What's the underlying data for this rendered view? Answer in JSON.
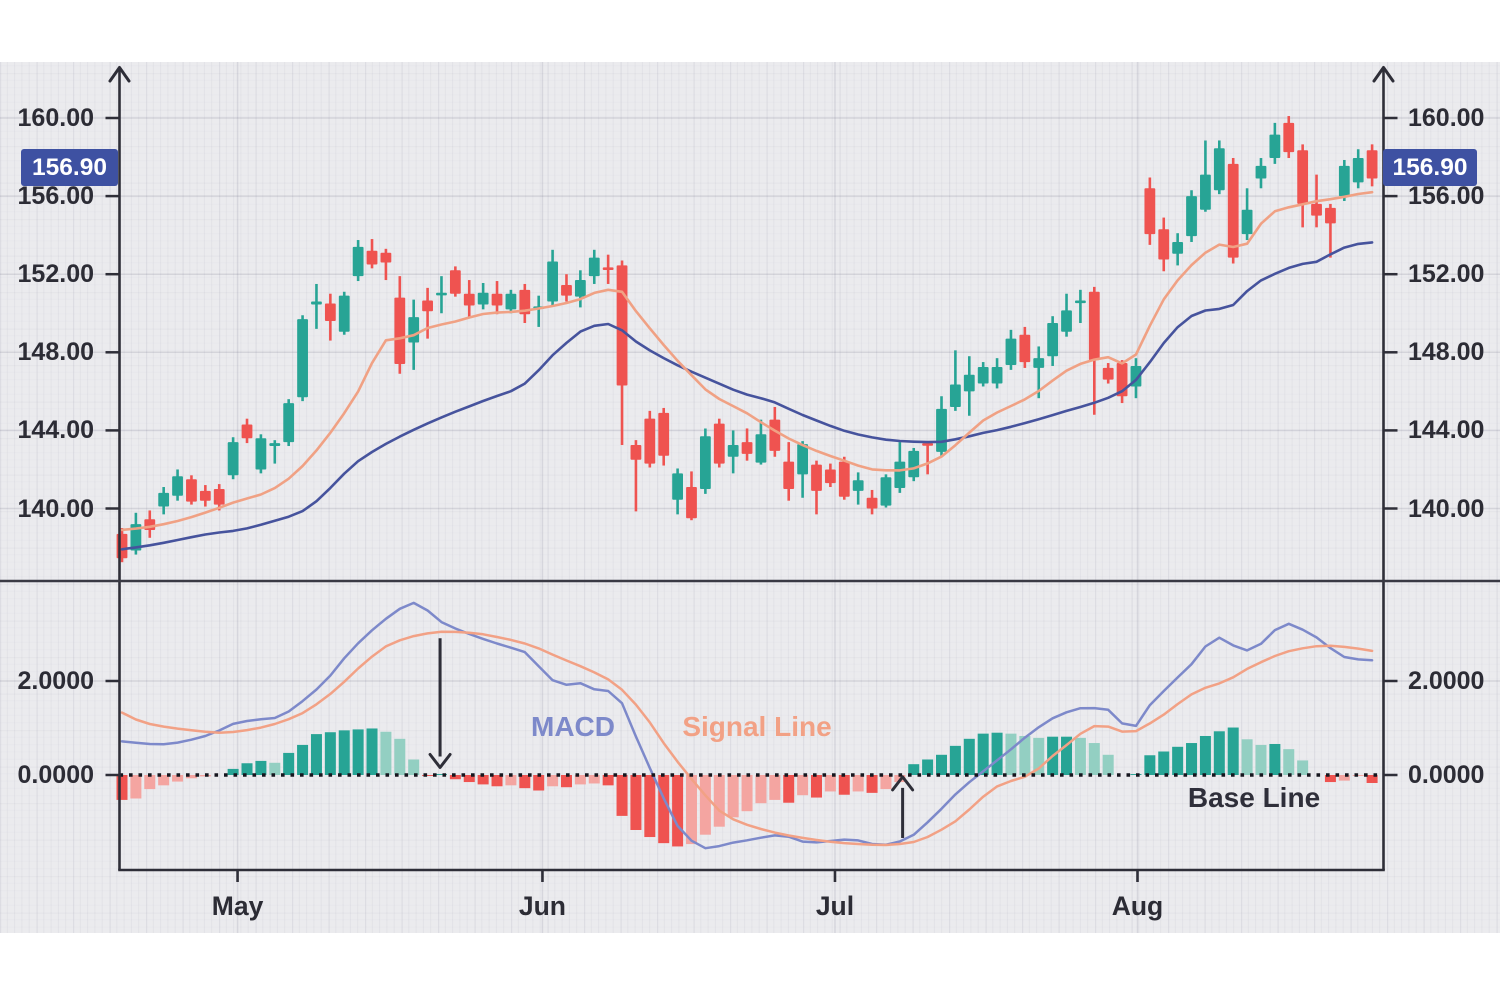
{
  "chart": {
    "type": "candlestick_with_macd",
    "price_panel": {
      "ticks": [
        {
          "label": "160.00",
          "value": 160.0
        },
        {
          "label": "156.00",
          "value": 156.0
        },
        {
          "label": "152.00",
          "value": 152.0
        },
        {
          "label": "148.00",
          "value": 148.0
        },
        {
          "label": "144.00",
          "value": 144.0
        },
        {
          "label": "140.00",
          "value": 140.0
        }
      ],
      "last_price_badge": {
        "label": "156.90",
        "value": 156.9
      }
    },
    "macd_panel": {
      "ticks": [
        {
          "label": "2.0000",
          "value": 2.0
        },
        {
          "label": "0.0000",
          "value": 0.0
        }
      ],
      "macd_label": "MACD",
      "signal_label": "Signal Line",
      "base_label": "Base Line"
    },
    "x_axis": {
      "months": [
        {
          "label": "May",
          "index": 8.32
        },
        {
          "label": "Jun",
          "index": 30.27
        },
        {
          "label": "Jul",
          "index": 51.33
        },
        {
          "label": "Aug",
          "index": 73.11
        }
      ]
    },
    "chart_data": {
      "type": "candlestick+macd",
      "ohlc_note": "candles are [open, high, low, close]; macd/signal/hist aligned per candle",
      "candles": [
        [
          138.7,
          139.0,
          137.25,
          137.45
        ],
        [
          137.85,
          139.78,
          137.64,
          139.2
        ],
        [
          139.45,
          139.9,
          138.5,
          138.9
        ],
        [
          140.1,
          141.1,
          139.7,
          140.8
        ],
        [
          140.65,
          142.0,
          140.4,
          141.65
        ],
        [
          141.5,
          141.7,
          140.2,
          140.35
        ],
        [
          140.9,
          141.2,
          140.1,
          140.4
        ],
        [
          141.0,
          141.25,
          139.9,
          140.2
        ],
        [
          141.7,
          143.65,
          141.5,
          143.4
        ],
        [
          144.3,
          144.6,
          143.35,
          143.6
        ],
        [
          142.0,
          143.8,
          141.8,
          143.6
        ],
        [
          143.2,
          143.5,
          142.3,
          143.35
        ],
        [
          143.4,
          145.6,
          143.2,
          145.4
        ],
        [
          145.7,
          149.9,
          145.5,
          149.7
        ],
        [
          150.45,
          151.5,
          149.2,
          150.6
        ],
        [
          150.5,
          151.0,
          148.6,
          149.6
        ],
        [
          149.05,
          151.1,
          148.9,
          150.9
        ],
        [
          151.9,
          153.75,
          151.65,
          153.4
        ],
        [
          153.2,
          153.8,
          152.3,
          152.5
        ],
        [
          153.1,
          153.3,
          151.7,
          152.6
        ],
        [
          150.8,
          151.9,
          146.9,
          147.4
        ],
        [
          148.5,
          150.7,
          147.1,
          149.8
        ],
        [
          150.65,
          151.3,
          148.7,
          150.1
        ],
        [
          150.95,
          151.9,
          150.0,
          151.05
        ],
        [
          152.2,
          152.4,
          150.85,
          151.0
        ],
        [
          151.0,
          151.7,
          149.8,
          150.4
        ],
        [
          150.45,
          151.55,
          150.2,
          151.05
        ],
        [
          151.0,
          151.65,
          149.95,
          150.4
        ],
        [
          150.2,
          151.2,
          150.0,
          151.0
        ],
        [
          151.2,
          151.5,
          149.5,
          149.95
        ],
        [
          150.3,
          150.9,
          149.3,
          150.35
        ],
        [
          150.6,
          153.25,
          150.35,
          152.65
        ],
        [
          151.45,
          152.0,
          150.6,
          150.9
        ],
        [
          150.85,
          152.2,
          150.3,
          151.7
        ],
        [
          151.9,
          153.25,
          151.5,
          152.85
        ],
        [
          152.35,
          153.0,
          151.5,
          152.25
        ],
        [
          152.45,
          152.7,
          143.25,
          146.3
        ],
        [
          143.25,
          143.5,
          139.85,
          142.5
        ],
        [
          144.6,
          145.0,
          142.1,
          142.3
        ],
        [
          144.9,
          145.15,
          142.2,
          142.7
        ],
        [
          140.45,
          142.05,
          139.7,
          141.8
        ],
        [
          141.1,
          141.9,
          139.4,
          139.5
        ],
        [
          141.0,
          144.1,
          140.75,
          143.7
        ],
        [
          144.35,
          144.6,
          142.1,
          142.3
        ],
        [
          142.65,
          144.0,
          141.8,
          143.25
        ],
        [
          143.4,
          144.1,
          142.45,
          142.8
        ],
        [
          142.35,
          144.55,
          142.25,
          143.8
        ],
        [
          144.55,
          145.2,
          142.65,
          142.95
        ],
        [
          142.4,
          143.4,
          140.4,
          141.0
        ],
        [
          141.75,
          143.45,
          140.55,
          143.3
        ],
        [
          142.25,
          142.45,
          139.7,
          140.9
        ],
        [
          142.0,
          142.3,
          141.1,
          141.3
        ],
        [
          142.4,
          142.65,
          140.45,
          140.6
        ],
        [
          140.9,
          141.85,
          140.2,
          141.45
        ],
        [
          140.55,
          140.95,
          139.7,
          140.0
        ],
        [
          140.15,
          141.75,
          140.05,
          141.6
        ],
        [
          141.05,
          143.4,
          140.8,
          142.4
        ],
        [
          141.6,
          143.1,
          141.4,
          142.95
        ],
        [
          143.35,
          143.4,
          141.75,
          143.25
        ],
        [
          142.9,
          145.75,
          142.7,
          145.1
        ],
        [
          145.2,
          148.1,
          145.0,
          146.35
        ],
        [
          146.0,
          147.8,
          144.75,
          146.85
        ],
        [
          146.4,
          147.5,
          146.25,
          147.25
        ],
        [
          146.4,
          147.7,
          146.15,
          147.25
        ],
        [
          147.35,
          149.15,
          147.1,
          148.7
        ],
        [
          148.9,
          149.3,
          147.2,
          147.5
        ],
        [
          147.2,
          148.3,
          145.65,
          147.7
        ],
        [
          147.8,
          149.85,
          147.3,
          149.5
        ],
        [
          149.05,
          151.0,
          148.8,
          150.15
        ],
        [
          150.55,
          151.2,
          149.5,
          150.65
        ],
        [
          151.1,
          151.35,
          144.8,
          147.6
        ],
        [
          147.2,
          147.45,
          146.4,
          146.6
        ],
        [
          147.45,
          147.6,
          145.4,
          145.75
        ],
        [
          146.25,
          147.7,
          145.65,
          147.3
        ],
        [
          156.4,
          156.95,
          153.5,
          154.05
        ],
        [
          154.3,
          154.9,
          152.15,
          152.75
        ],
        [
          153.05,
          154.1,
          152.45,
          153.65
        ],
        [
          153.95,
          156.3,
          153.65,
          156.0
        ],
        [
          155.3,
          158.85,
          155.2,
          157.1
        ],
        [
          156.3,
          158.85,
          156.1,
          158.45
        ],
        [
          157.65,
          157.95,
          152.55,
          152.85
        ],
        [
          154.05,
          156.4,
          153.75,
          155.3
        ],
        [
          156.9,
          157.95,
          156.4,
          157.55
        ],
        [
          157.95,
          159.75,
          157.65,
          159.15
        ],
        [
          159.75,
          160.1,
          157.95,
          158.25
        ],
        [
          158.35,
          158.65,
          154.4,
          155.6
        ],
        [
          155.6,
          157.1,
          154.4,
          155.0
        ],
        [
          155.4,
          155.6,
          152.85,
          154.6
        ],
        [
          156.0,
          157.85,
          155.75,
          157.55
        ],
        [
          156.7,
          158.4,
          156.4,
          157.95
        ],
        [
          158.35,
          158.65,
          156.5,
          156.9
        ]
      ],
      "ema_fast": [
        138.906,
        138.971,
        139.063,
        139.195,
        139.362,
        139.559,
        139.788,
        140.037,
        140.3,
        140.512,
        140.717,
        141.044,
        141.525,
        142.179,
        142.977,
        143.884,
        144.882,
        145.985,
        147.446,
        148.613,
        148.718,
        148.876,
        149.244,
        149.426,
        149.58,
        149.78,
        149.964,
        150.035,
        150.071,
        150.132,
        150.243,
        150.373,
        150.527,
        150.724,
        151.04,
        151.2,
        151.101,
        150.112,
        149.229,
        148.376,
        147.567,
        146.828,
        146.098,
        145.607,
        145.246,
        144.878,
        144.421,
        143.989,
        143.585,
        143.247,
        142.952,
        142.687,
        142.449,
        142.195,
        142.001,
        141.959,
        141.95,
        142.055,
        142.312,
        142.66,
        143.243,
        143.888,
        144.506,
        144.915,
        145.248,
        145.587,
        146.019,
        146.552,
        147.06,
        147.407,
        147.628,
        147.748,
        147.431,
        147.885,
        149.364,
        150.714,
        151.684,
        152.467,
        153.099,
        153.515,
        153.391,
        153.564,
        154.587,
        155.219,
        155.427,
        155.582,
        155.737,
        155.842,
        155.965,
        156.11,
        156.2
      ],
      "ema_slow": [
        137.912,
        138.006,
        138.115,
        138.245,
        138.386,
        138.53,
        138.669,
        138.769,
        138.854,
        138.983,
        139.167,
        139.369,
        139.578,
        139.865,
        140.372,
        141.054,
        141.78,
        142.42,
        142.894,
        143.308,
        143.683,
        144.03,
        144.36,
        144.668,
        144.956,
        145.231,
        145.504,
        145.763,
        146.01,
        146.396,
        147.082,
        147.851,
        148.483,
        149.06,
        149.356,
        149.448,
        149.125,
        148.552,
        148.098,
        147.701,
        147.335,
        147.007,
        146.701,
        146.392,
        146.087,
        145.835,
        145.651,
        145.435,
        145.104,
        144.789,
        144.509,
        144.23,
        143.98,
        143.788,
        143.639,
        143.523,
        143.456,
        143.419,
        143.403,
        143.417,
        143.544,
        143.698,
        143.872,
        144.017,
        144.186,
        144.373,
        144.574,
        144.785,
        144.999,
        145.2,
        145.413,
        145.671,
        146.009,
        146.584,
        147.496,
        148.478,
        149.283,
        149.857,
        150.139,
        150.221,
        150.421,
        151.132,
        151.685,
        152.02,
        152.321,
        152.526,
        152.633,
        153.013,
        153.362,
        153.552,
        153.63
      ],
      "macd": [
        0.715,
        0.686,
        0.66,
        0.656,
        0.69,
        0.751,
        0.829,
        0.946,
        1.088,
        1.148,
        1.185,
        1.212,
        1.352,
        1.573,
        1.819,
        2.116,
        2.482,
        2.802,
        3.078,
        3.323,
        3.536,
        3.662,
        3.5,
        3.253,
        3.117,
        2.999,
        2.895,
        2.798,
        2.709,
        2.614,
        2.314,
        2.016,
        1.92,
        1.953,
        1.823,
        1.788,
        1.528,
        0.819,
        0.15,
        -0.495,
        -1.082,
        -1.397,
        -1.558,
        -1.512,
        -1.438,
        -1.39,
        -1.335,
        -1.285,
        -1.313,
        -1.416,
        -1.435,
        -1.404,
        -1.374,
        -1.392,
        -1.469,
        -1.482,
        -1.415,
        -1.273,
        -1.006,
        -0.719,
        -0.412,
        -0.153,
        0.079,
        0.313,
        0.546,
        0.794,
        1.015,
        1.206,
        1.334,
        1.422,
        1.423,
        1.387,
        1.098,
        1.044,
        1.487,
        1.788,
        2.075,
        2.358,
        2.734,
        2.922,
        2.758,
        2.651,
        2.792,
        3.083,
        3.218,
        3.092,
        2.927,
        2.699,
        2.511,
        2.459,
        2.44
      ],
      "signal": [
        1.327,
        1.181,
        1.086,
        1.03,
        0.987,
        0.954,
        0.921,
        0.9,
        0.915,
        0.956,
        1.008,
        1.085,
        1.188,
        1.317,
        1.504,
        1.726,
        1.983,
        2.267,
        2.52,
        2.736,
        2.866,
        2.955,
        3.012,
        3.048,
        3.045,
        3.026,
        2.993,
        2.937,
        2.874,
        2.797,
        2.693,
        2.561,
        2.437,
        2.314,
        2.182,
        2.034,
        1.813,
        1.497,
        1.12,
        0.678,
        0.281,
        -0.084,
        -0.433,
        -0.758,
        -0.943,
        -1.06,
        -1.149,
        -1.225,
        -1.288,
        -1.339,
        -1.384,
        -1.422,
        -1.449,
        -1.469,
        -1.484,
        -1.49,
        -1.469,
        -1.425,
        -1.319,
        -1.163,
        -0.986,
        -0.735,
        -0.461,
        -0.242,
        -0.127,
        -0.038,
        0.139,
        0.404,
        0.636,
        0.877,
        1.041,
        1.029,
        0.923,
        0.934,
        1.098,
        1.286,
        1.508,
        1.714,
        1.856,
        1.949,
        2.078,
        2.258,
        2.401,
        2.531,
        2.634,
        2.696,
        2.741,
        2.748,
        2.725,
        2.689,
        2.64
      ],
      "hist": [
        -0.53,
        -0.5,
        -0.3,
        -0.22,
        -0.14,
        -0.07,
        -0.03,
        -0.01,
        0.13,
        0.25,
        0.3,
        0.26,
        0.47,
        0.64,
        0.87,
        0.91,
        0.95,
        0.97,
        0.99,
        0.92,
        0.77,
        0.33,
        -0.02,
        0.02,
        -0.09,
        -0.15,
        -0.2,
        -0.24,
        -0.22,
        -0.28,
        -0.33,
        -0.24,
        -0.26,
        -0.2,
        -0.18,
        -0.22,
        -0.87,
        -1.17,
        -1.32,
        -1.45,
        -1.52,
        -1.47,
        -1.27,
        -1.1,
        -0.9,
        -0.77,
        -0.6,
        -0.53,
        -0.59,
        -0.43,
        -0.48,
        -0.35,
        -0.42,
        -0.35,
        -0.38,
        -0.3,
        -0.15,
        0.23,
        0.33,
        0.43,
        0.62,
        0.77,
        0.88,
        0.9,
        0.88,
        0.83,
        0.79,
        0.815,
        0.815,
        0.79,
        0.68,
        0.43,
        0.0,
        0.02,
        0.42,
        0.5,
        0.6,
        0.68,
        0.83,
        0.93,
        1.01,
        0.76,
        0.64,
        0.66,
        0.55,
        0.31,
        0.0,
        -0.15,
        -0.12,
        -0.02,
        -0.17
      ],
      "price_range_labeled": [
        140.0,
        160.0
      ],
      "macd_ticks": [
        0.0,
        2.0
      ]
    },
    "annotations": {
      "arrows": [
        {
          "dir": "down",
          "index": 22.9,
          "from": 2.91,
          "to": 0.16
        },
        {
          "dir": "up",
          "index": 56.2,
          "from": -1.34,
          "to": -0.04
        }
      ]
    },
    "colors": {
      "up": "#27a495",
      "up_faded": "#93cfc2",
      "down": "#ef5350",
      "down_faded": "#f4a5a1",
      "ema_fast": "#f0a184",
      "ema_slow": "#46539d",
      "macd_line": "#7d89ca",
      "signal_line": "#f2a185",
      "axis": "#2e2e38",
      "label": "#2c2c35",
      "badge_bg": "#3e51a2",
      "badge_text": "#ffffff",
      "panel_bg": "#ebebee",
      "page_bg": "#ffffff",
      "divider": "#3a3a44",
      "baseline": "#16161e"
    }
  }
}
